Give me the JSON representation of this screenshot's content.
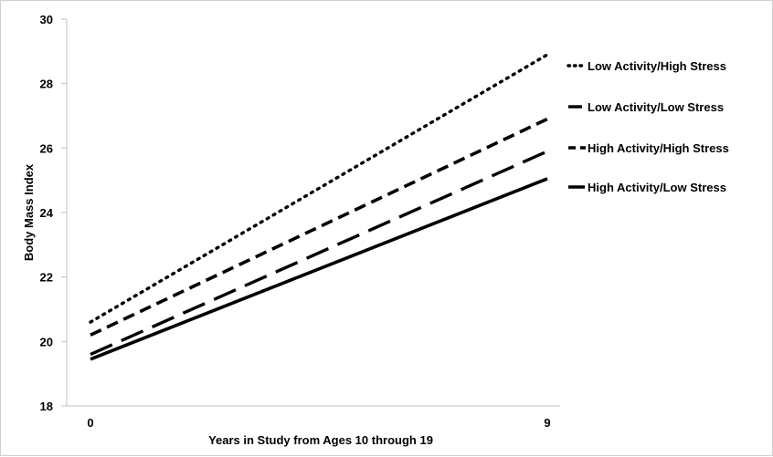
{
  "chart_data": {
    "type": "line",
    "title": "",
    "xlabel": "Years in Study from Ages 10 through 19",
    "ylabel": "Body Mass Index",
    "x": [
      0,
      9
    ],
    "x_ticks": [
      "0",
      "9"
    ],
    "ylim": [
      18,
      30
    ],
    "y_ticks": [
      "18",
      "20",
      "22",
      "24",
      "26",
      "28",
      "30"
    ],
    "grid": false,
    "legend_position": "right",
    "series": [
      {
        "name": "Low Activity/High Stress",
        "values": [
          20.6,
          28.9
        ],
        "style": "dotted",
        "color": "#000000"
      },
      {
        "name": "Low Activity/Low Stress",
        "values": [
          19.6,
          25.9
        ],
        "style": "long-dashed",
        "color": "#000000"
      },
      {
        "name": "High Activity/High Stress",
        "values": [
          20.2,
          26.9
        ],
        "style": "short-dashed",
        "color": "#000000"
      },
      {
        "name": "High Activity/Low Stress",
        "values": [
          19.45,
          25.05
        ],
        "style": "solid",
        "color": "#000000"
      }
    ]
  }
}
